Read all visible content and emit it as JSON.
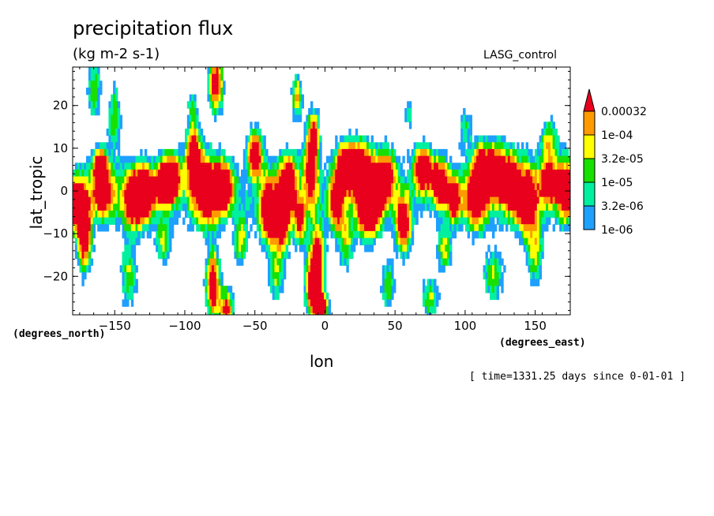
{
  "chart_data": {
    "type": "heatmap",
    "title": "precipitation flux",
    "units": "(kg m-2 s-1)",
    "run_label": "LASG_control",
    "xlabel": "lon",
    "ylabel": "lat_tropic",
    "x_units": "(degrees_east)",
    "y_units": "(degrees_north)",
    "x_ticks": [
      "−150",
      "−100",
      "−50",
      "0",
      "50",
      "100",
      "150"
    ],
    "x_tick_values": [
      -150,
      -100,
      -50,
      0,
      50,
      100,
      150
    ],
    "y_ticks": [
      "20",
      "10",
      "0",
      "−10",
      "−20"
    ],
    "y_tick_values": [
      20,
      10,
      0,
      -10,
      -20
    ],
    "xlim": [
      -180,
      175
    ],
    "ylim": [
      -29,
      29
    ],
    "timestamp": "[ time=1331.25 days since 0-01-01 ]",
    "legend": {
      "levels": [
        "0.00032",
        "1e-04",
        "3.2e-05",
        "1e-05",
        "3.2e-06",
        "1e-06"
      ],
      "colors": [
        "#e8001c",
        "#ff9a00",
        "#ffff00",
        "#18e000",
        "#00f0a0",
        "#1ea0ff"
      ],
      "placement": "right"
    }
  }
}
